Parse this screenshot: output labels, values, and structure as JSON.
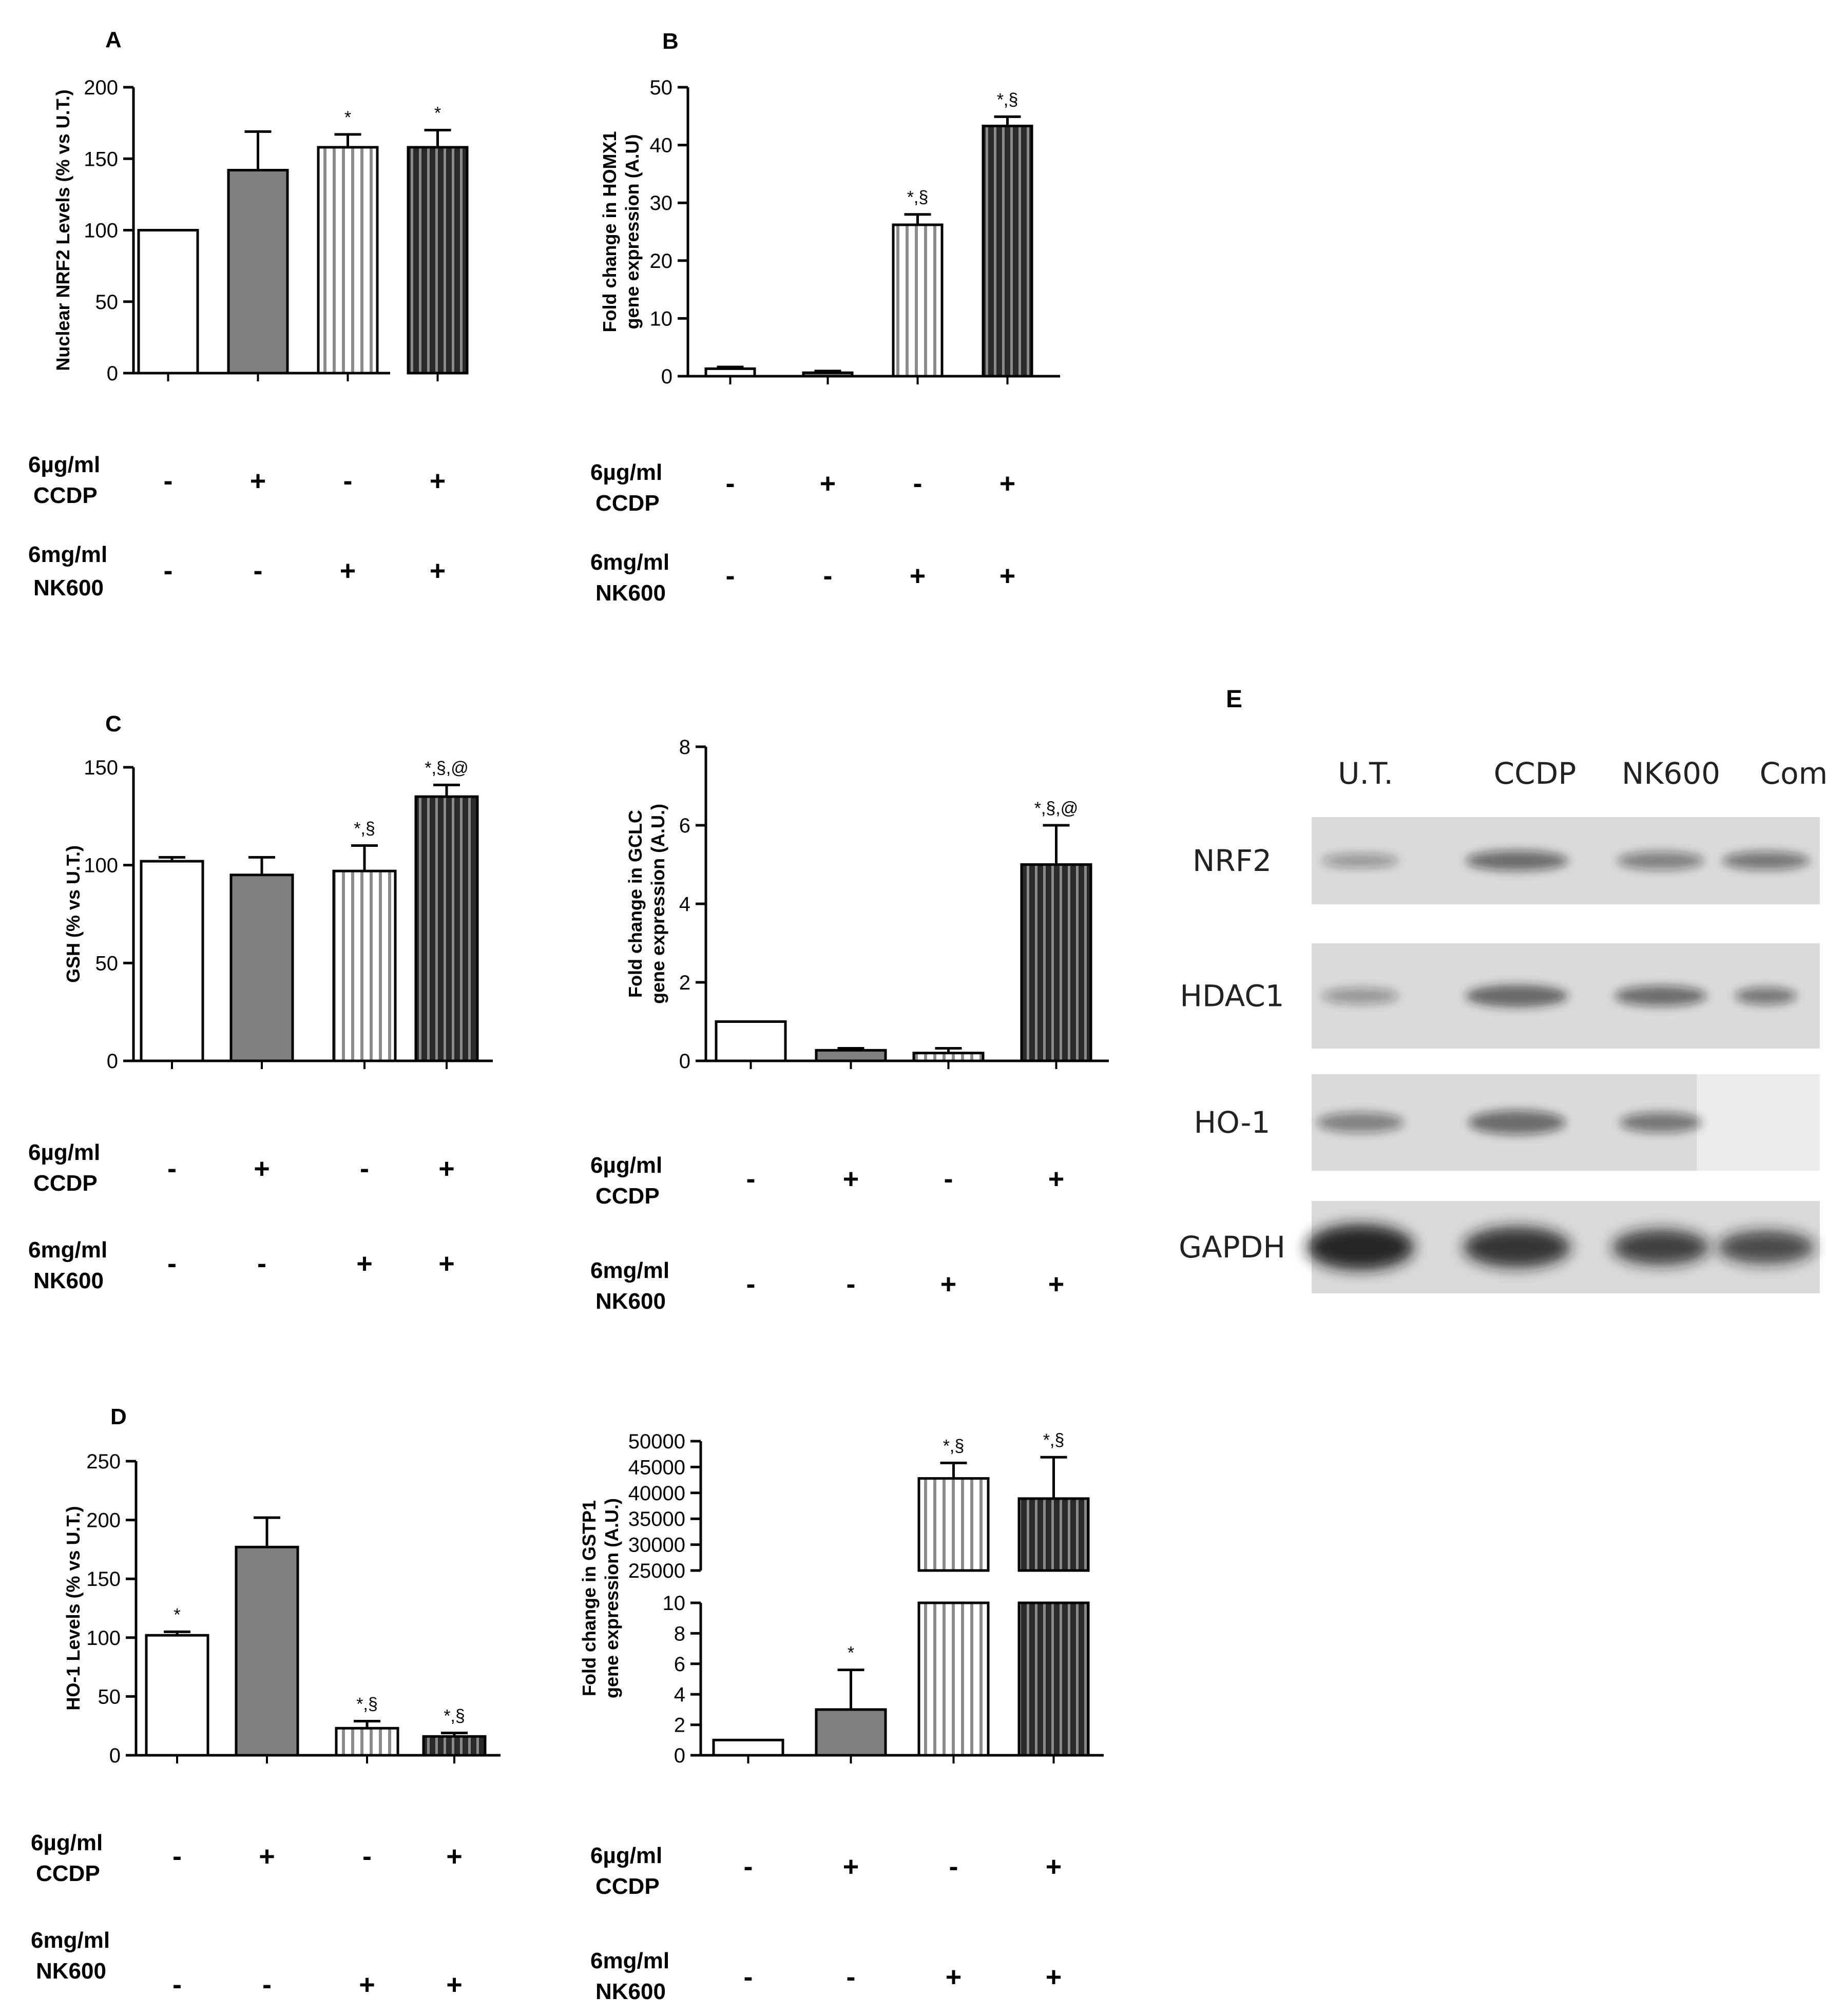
{
  "treatment_rows": {
    "ccdp_label": [
      "6µg/ml",
      "CCDP"
    ],
    "nk600_label": [
      "6mg/ml",
      "NK600"
    ],
    "ccdp_signs": [
      "-",
      "+",
      "-",
      "+"
    ],
    "nk600_signs": [
      "-",
      "-",
      "+",
      "+"
    ]
  },
  "chart_data": [
    {
      "id": "A",
      "panel_label": "A",
      "type": "bar",
      "ylabel": "Nuclear NRF2 Levels (% vs U.T.)",
      "ylim": [
        0,
        200
      ],
      "yticks": [
        0,
        50,
        100,
        150,
        200
      ],
      "values": [
        100,
        142,
        158,
        158
      ],
      "errors": [
        0,
        27,
        9,
        12
      ],
      "annotations": [
        "",
        "",
        "*",
        "*"
      ]
    },
    {
      "id": "B",
      "panel_label": "B",
      "type": "bar",
      "ylabel": [
        "Fold change in HOMX1",
        "gene expression (A.U)"
      ],
      "ylim": [
        0,
        50
      ],
      "yticks": [
        0,
        10,
        20,
        30,
        40,
        50
      ],
      "values": [
        1.3,
        0.6,
        26.2,
        43.3
      ],
      "errors": [
        0.3,
        0.3,
        1.8,
        1.6
      ],
      "annotations": [
        "",
        "",
        "*,§",
        "*,§"
      ]
    },
    {
      "id": "C",
      "panel_label": "C",
      "type": "bar",
      "ylabel": "GSH (% vs U.T.)",
      "ylim": [
        0,
        150
      ],
      "yticks": [
        0,
        50,
        100,
        150
      ],
      "values": [
        102,
        95,
        97,
        135
      ],
      "errors": [
        2,
        9,
        13,
        6
      ],
      "annotations": [
        "",
        "",
        "*,§",
        "*,§,@"
      ]
    },
    {
      "id": "C2",
      "panel_label": "",
      "type": "bar",
      "ylabel": [
        "Fold change in GCLC",
        "gene expression (A.U.)"
      ],
      "ylim": [
        0,
        8
      ],
      "yticks": [
        0,
        2,
        4,
        6,
        8
      ],
      "values": [
        1.0,
        0.27,
        0.2,
        5.0
      ],
      "errors": [
        0,
        0.05,
        0.12,
        1.0
      ],
      "annotations": [
        "",
        "",
        "",
        "*,§,@"
      ]
    },
    {
      "id": "D",
      "panel_label": "D",
      "type": "bar",
      "ylabel": "HO-1 Levels (% vs U.T.)",
      "ylim": [
        0,
        250
      ],
      "yticks": [
        0,
        50,
        100,
        150,
        200,
        250
      ],
      "values": [
        102,
        177,
        23,
        16
      ],
      "errors": [
        3,
        25,
        6,
        3
      ],
      "annotations": [
        "*",
        "",
        "*,§",
        "*,§"
      ]
    },
    {
      "id": "D2",
      "panel_label": "",
      "type": "bar",
      "ylabel": [
        "Fold change in GSTP1",
        "gene expression (A.U.)"
      ],
      "broken_axis": true,
      "yticks_lower": [
        0,
        2,
        4,
        6,
        8,
        10
      ],
      "yticks_upper": [
        25000,
        30000,
        35000,
        40000,
        45000,
        50000
      ],
      "values": [
        1.0,
        3.0,
        42800,
        38900
      ],
      "errors": [
        0,
        2.6,
        3000,
        8000
      ],
      "annotations": [
        "",
        "*",
        "*,§",
        "*,§"
      ]
    }
  ],
  "western_blot": {
    "panel_label": "E",
    "lanes": [
      "U.T.",
      "CCDP",
      "NK600",
      "Combo"
    ],
    "proteins": [
      "NRF2",
      "HDAC1",
      "HO-1",
      "GAPDH"
    ]
  },
  "colors": {
    "ut": "#ffffff",
    "ccdp": "#808080",
    "nk600": "vertical-stripes-light",
    "combo": "vertical-stripes-dark"
  }
}
